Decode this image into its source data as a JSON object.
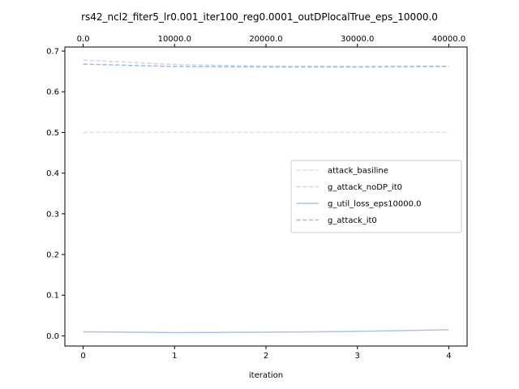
{
  "chart_data": {
    "type": "line",
    "title": "rs42_ncl2_fiter5_lr0.001_iter100_reg0.0001_outDPlocalTrue_eps_10000.0",
    "xlabel": "iteration",
    "ylabel": "",
    "x": [
      0,
      1,
      2,
      3,
      4
    ],
    "xlim": [
      -0.2,
      4.2
    ],
    "ylim": [
      -0.025,
      0.71
    ],
    "x_ticks": [
      "0",
      "1",
      "2",
      "3",
      "4"
    ],
    "y_ticks": [
      "0.0",
      "0.1",
      "0.2",
      "0.3",
      "0.4",
      "0.5",
      "0.6",
      "0.7"
    ],
    "top_axis": {
      "ticks": [
        0,
        10000,
        20000,
        30000,
        40000
      ],
      "tick_labels": [
        "0.0",
        "10000.0",
        "20000.0",
        "30000.0",
        "40000.0"
      ],
      "range": [
        -2000,
        42000
      ]
    },
    "legend_position": "center-right",
    "series": [
      {
        "name": "attack_basiline",
        "values": [
          0.5,
          0.5,
          0.5,
          0.5,
          0.5
        ],
        "color": "#dde3ea",
        "dash": "dashed"
      },
      {
        "name": "g_attack_noDP_it0",
        "values": [
          0.678,
          0.667,
          0.663,
          0.662,
          0.663
        ],
        "color": "#c9d9ea",
        "dash": "dashed"
      },
      {
        "name": "g_util_loss_eps10000.0",
        "values": [
          0.01,
          0.008,
          0.009,
          0.011,
          0.015
        ],
        "color": "#a9c6e4",
        "dash": "solid"
      },
      {
        "name": "g_attack_it0",
        "values": [
          0.668,
          0.662,
          0.661,
          0.661,
          0.662
        ],
        "color": "#9dbde3",
        "dash": "dashed"
      }
    ]
  }
}
